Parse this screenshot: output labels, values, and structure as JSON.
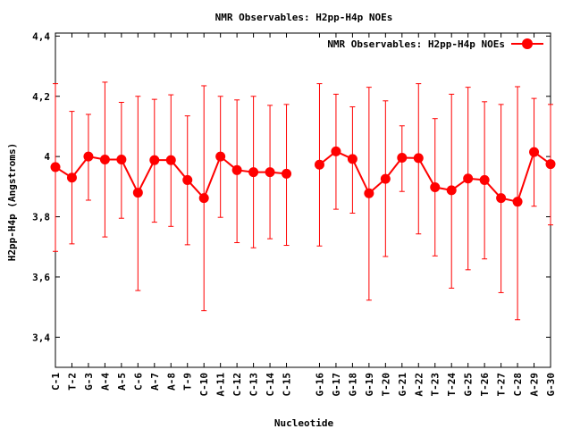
{
  "chart_data": {
    "type": "line",
    "title": "NMR Observables: H2pp-H4p NOEs",
    "xlabel": "Nucleotide",
    "ylabel": "H2pp-H4p (Angstroms)",
    "ylim": [
      3.3,
      4.41
    ],
    "yticks": [
      3.4,
      3.6,
      3.8,
      4.0,
      4.2,
      4.4
    ],
    "ytick_labels": [
      "3,4",
      "3,6",
      "3,8",
      "4",
      "4,2",
      "4,4"
    ],
    "grid": false,
    "legend_position": "top-right",
    "categories": [
      "C-1",
      "T-2",
      "G-3",
      "A-4",
      "A-5",
      "C-6",
      "A-7",
      "A-8",
      "T-9",
      "C-10",
      "A-11",
      "C-12",
      "C-13",
      "C-14",
      "C-15",
      "G-16",
      "G-17",
      "G-18",
      "G-19",
      "T-20",
      "G-21",
      "A-22",
      "T-23",
      "T-24",
      "G-25",
      "T-26",
      "T-27",
      "C-28",
      "A-29",
      "G-30"
    ],
    "x": [
      1,
      2,
      3,
      4,
      5,
      6,
      7,
      8,
      9,
      10,
      11,
      12,
      13,
      14,
      15,
      17,
      18,
      19,
      20,
      21,
      22,
      23,
      24,
      25,
      26,
      27,
      28,
      29,
      30,
      31
    ],
    "xlim": [
      1,
      31
    ],
    "series": [
      {
        "name": "NMR Observables: H2pp-H4p NOEs",
        "color": "#ff0000",
        "values": [
          3.965,
          3.93,
          4.0,
          3.99,
          3.99,
          3.88,
          3.988,
          3.988,
          3.922,
          3.862,
          4.0,
          3.955,
          3.948,
          3.948,
          3.943,
          3.973,
          4.017,
          3.992,
          3.878,
          3.926,
          3.996,
          3.995,
          3.898,
          3.888,
          3.927,
          3.922,
          3.862,
          3.85,
          4.015,
          3.975
        ],
        "error_low": [
          3.685,
          3.71,
          3.855,
          3.733,
          3.795,
          3.555,
          3.782,
          3.768,
          3.707,
          3.488,
          3.798,
          3.714,
          3.697,
          3.727,
          3.705,
          3.703,
          3.825,
          3.812,
          3.523,
          3.668,
          3.884,
          3.743,
          3.67,
          3.563,
          3.624,
          3.66,
          3.548,
          3.458,
          3.835,
          3.773
        ],
        "error_high": [
          4.242,
          4.15,
          4.14,
          4.247,
          4.18,
          4.2,
          4.19,
          4.205,
          4.135,
          4.235,
          4.2,
          4.188,
          4.2,
          4.17,
          4.173,
          4.242,
          4.207,
          4.165,
          4.23,
          4.185,
          4.102,
          4.242,
          4.126,
          4.207,
          4.23,
          4.182,
          4.173,
          4.232,
          4.193,
          4.173
        ]
      }
    ]
  }
}
